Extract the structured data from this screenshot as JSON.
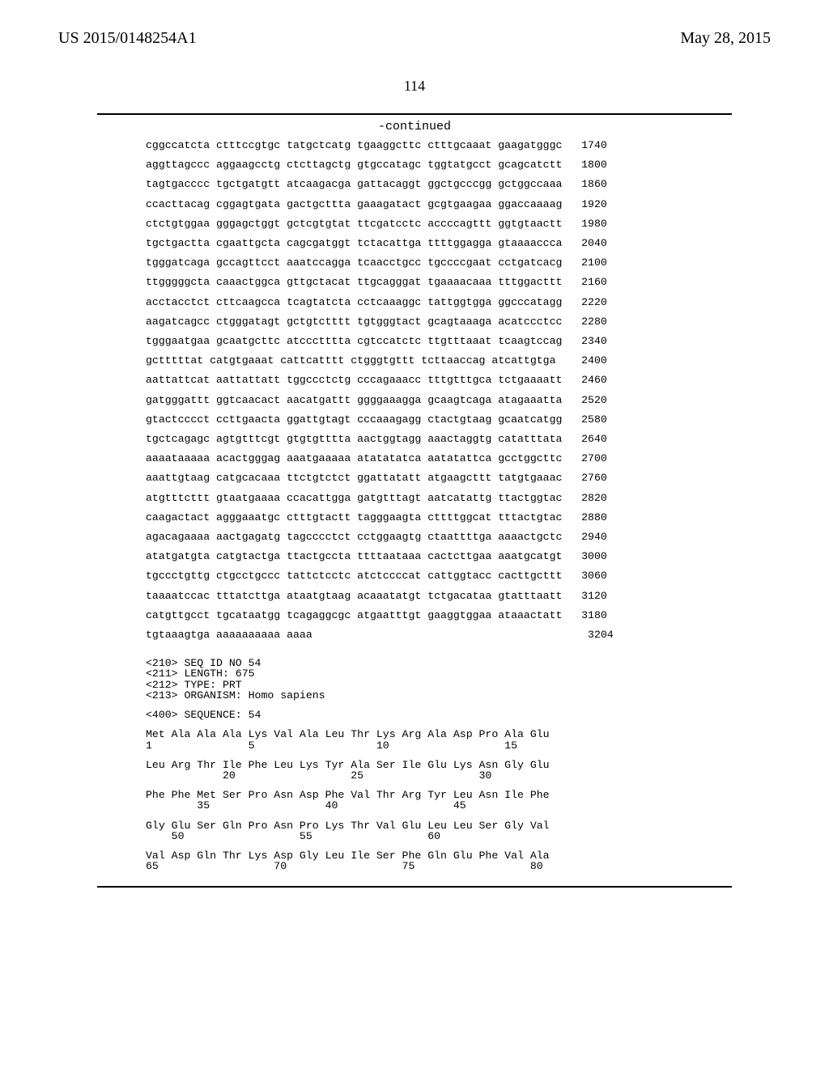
{
  "header": {
    "left": "US 2015/0148254A1",
    "right": "May 28, 2015",
    "page_number": "114"
  },
  "continued_label": "-continued",
  "sequence_block": {
    "font_family": "Courier New",
    "font_size_pt": 10,
    "color": "#000000",
    "lines": [
      "cggccatcta ctttccgtgc tatgctcatg tgaaggcttc ctttgcaaat gaagatgggc   1740",
      "",
      "aggttagccc aggaagcctg ctcttagctg gtgccatagc tggtatgcct gcagcatctt   1800",
      "",
      "tagtgacccc tgctgatgtt atcaagacga gattacaggt ggctgcccgg gctggccaaa   1860",
      "",
      "ccacttacag cggagtgata gactgcttta gaaagatact gcgtgaagaa ggaccaaaag   1920",
      "",
      "ctctgtggaa gggagctggt gctcgtgtat ttcgatcctc accccagttt ggtgtaactt   1980",
      "",
      "tgctgactta cgaattgcta cagcgatggt tctacattga ttttggagga gtaaaaccca   2040",
      "",
      "tgggatcaga gccagttcct aaatccagga tcaacctgcc tgccccgaat cctgatcacg   2100",
      "",
      "ttgggggcta caaactggca gttgctacat ttgcagggat tgaaaacaaa tttggacttt   2160",
      "",
      "acctacctct cttcaagcca tcagtatcta cctcaaaggc tattggtgga ggcccatagg   2220",
      "",
      "aagatcagcc ctgggatagt gctgtctttt tgtgggtact gcagtaaaga acatccctcc   2280",
      "",
      "tgggaatgaa gcaatgcttc atccctttta cgtccatctc ttgtttaaat tcaagtccag   2340",
      "",
      "gctttttat catgtgaaat cattcatttt ctgggtgttt tcttaaccag atcattgtga    2400",
      "",
      "aattattcat aattattatt tggccctctg cccagaaacc tttgtttgca tctgaaaatt   2460",
      "",
      "gatgggattt ggtcaacact aacatgattt ggggaaagga gcaagtcaga atagaaatta   2520",
      "",
      "gtactcccct ccttgaacta ggattgtagt cccaaagagg ctactgtaag gcaatcatgg   2580",
      "",
      "tgctcagagc agtgtttcgt gtgtgtttta aactggtagg aaactaggtg catatttata   2640",
      "",
      "aaaataaaaa acactgggag aaatgaaaaa atatatatca aatatattca gcctggcttc   2700",
      "",
      "aaattgtaag catgcacaaa ttctgtctct ggattatatt atgaagcttt tatgtgaaac   2760",
      "",
      "atgtttcttt gtaatgaaaa ccacattgga gatgtttagt aatcatattg ttactggtac   2820",
      "",
      "caagactact agggaaatgc ctttgtactt tagggaagta cttttggcat tttactgtac   2880",
      "",
      "agacagaaaa aactgagatg tagcccctct cctggaagtg ctaattttga aaaactgctc   2940",
      "",
      "atatgatgta catgtactga ttactgccta ttttaataaa cactcttgaa aaatgcatgt   3000",
      "",
      "tgccctgttg ctgcctgccc tattctcctc atctccccat cattggtacc cacttgcttt   3060",
      "",
      "taaaatccac tttatcttga ataatgtaag acaaatatgt tctgacataa gtatttaatt   3120",
      "",
      "catgttgcct tgcataatgg tcagaggcgc atgaatttgt gaaggtggaa ataaactatt   3180",
      "",
      "tgtaaagtga aaaaaaaaaa aaaa                                           3204",
      "",
      "",
      "<210> SEQ ID NO 54",
      "<211> LENGTH: 675",
      "<212> TYPE: PRT",
      "<213> ORGANISM: Homo sapiens",
      "",
      "<400> SEQUENCE: 54",
      "",
      "Met Ala Ala Ala Lys Val Ala Leu Thr Lys Arg Ala Asp Pro Ala Glu",
      "1               5                   10                  15",
      "",
      "Leu Arg Thr Ile Phe Leu Lys Tyr Ala Ser Ile Glu Lys Asn Gly Glu",
      "            20                  25                  30",
      "",
      "Phe Phe Met Ser Pro Asn Asp Phe Val Thr Arg Tyr Leu Asn Ile Phe",
      "        35                  40                  45",
      "",
      "Gly Glu Ser Gln Pro Asn Pro Lys Thr Val Glu Leu Leu Ser Gly Val",
      "    50                  55                  60",
      "",
      "Val Asp Gln Thr Lys Asp Gly Leu Ile Ser Phe Gln Glu Phe Val Ala",
      "65                  70                  75                  80"
    ]
  }
}
